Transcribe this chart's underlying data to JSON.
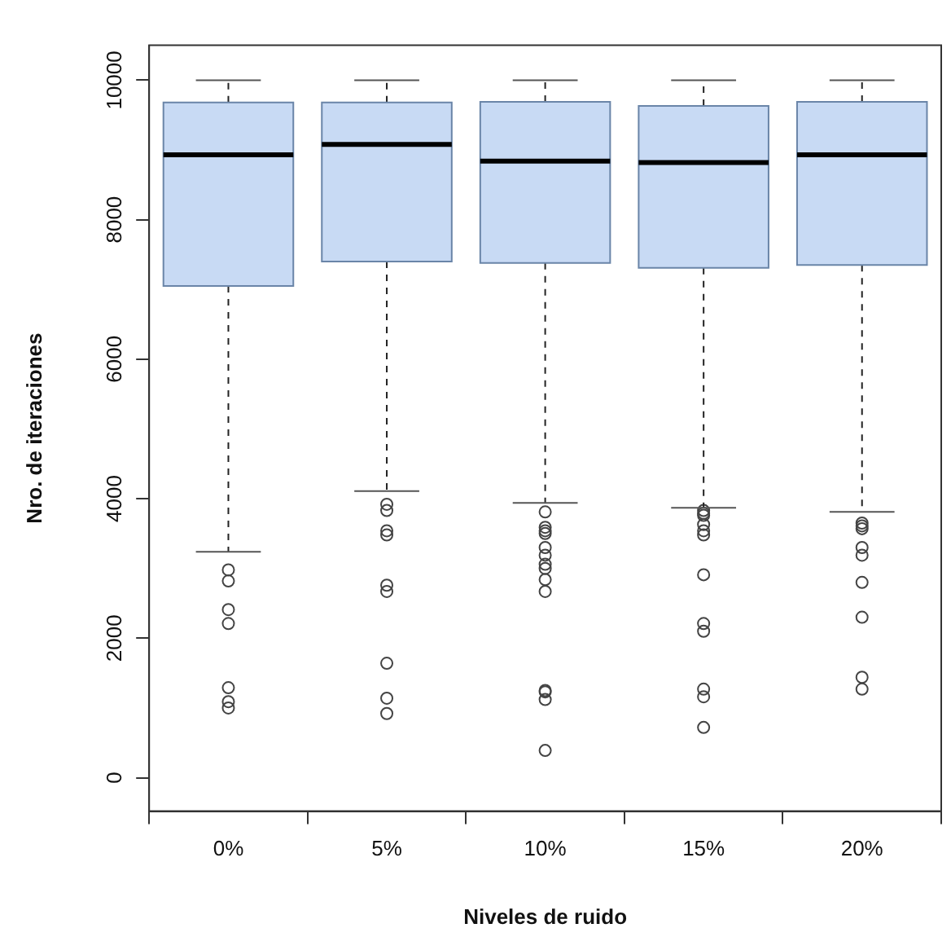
{
  "chart_data": {
    "type": "box",
    "xlabel": "Niveles de ruido",
    "ylabel": "Nro. de iteraciones",
    "categories": [
      "0%",
      "5%",
      "10%",
      "15%",
      "20%"
    ],
    "color": "#c8daf4",
    "boxes": [
      {
        "low": 3240,
        "q1": 7050,
        "median": 8930,
        "q3": 9680,
        "high": 10000,
        "outliers": [
          2980,
          2820,
          2410,
          2210,
          1290,
          1090,
          1000
        ]
      },
      {
        "low": 4110,
        "q1": 7400,
        "median": 9080,
        "q3": 9680,
        "high": 10000,
        "outliers": [
          3920,
          3830,
          3540,
          3480,
          2760,
          2670,
          1640,
          1140,
          920
        ]
      },
      {
        "low": 3940,
        "q1": 7380,
        "median": 8840,
        "q3": 9690,
        "high": 10000,
        "outliers": [
          3810,
          3590,
          3540,
          3500,
          3300,
          3190,
          3060,
          3000,
          2840,
          2670,
          1250,
          1230,
          1120,
          390
        ]
      },
      {
        "low": 3870,
        "q1": 7310,
        "median": 8820,
        "q3": 9630,
        "high": 10000,
        "outliers": [
          3830,
          3790,
          3760,
          3630,
          3540,
          3480,
          2910,
          2210,
          2100,
          1270,
          1160,
          720
        ]
      },
      {
        "low": 3810,
        "q1": 7350,
        "median": 8930,
        "q3": 9690,
        "high": 10000,
        "outliers": [
          3650,
          3610,
          3570,
          3300,
          3190,
          2800,
          2300,
          1440,
          1270
        ]
      }
    ],
    "ylim": [
      -480,
      10500
    ],
    "yticks": [
      0,
      2000,
      4000,
      6000,
      8000,
      10000
    ],
    "grid": false,
    "legend": false
  }
}
